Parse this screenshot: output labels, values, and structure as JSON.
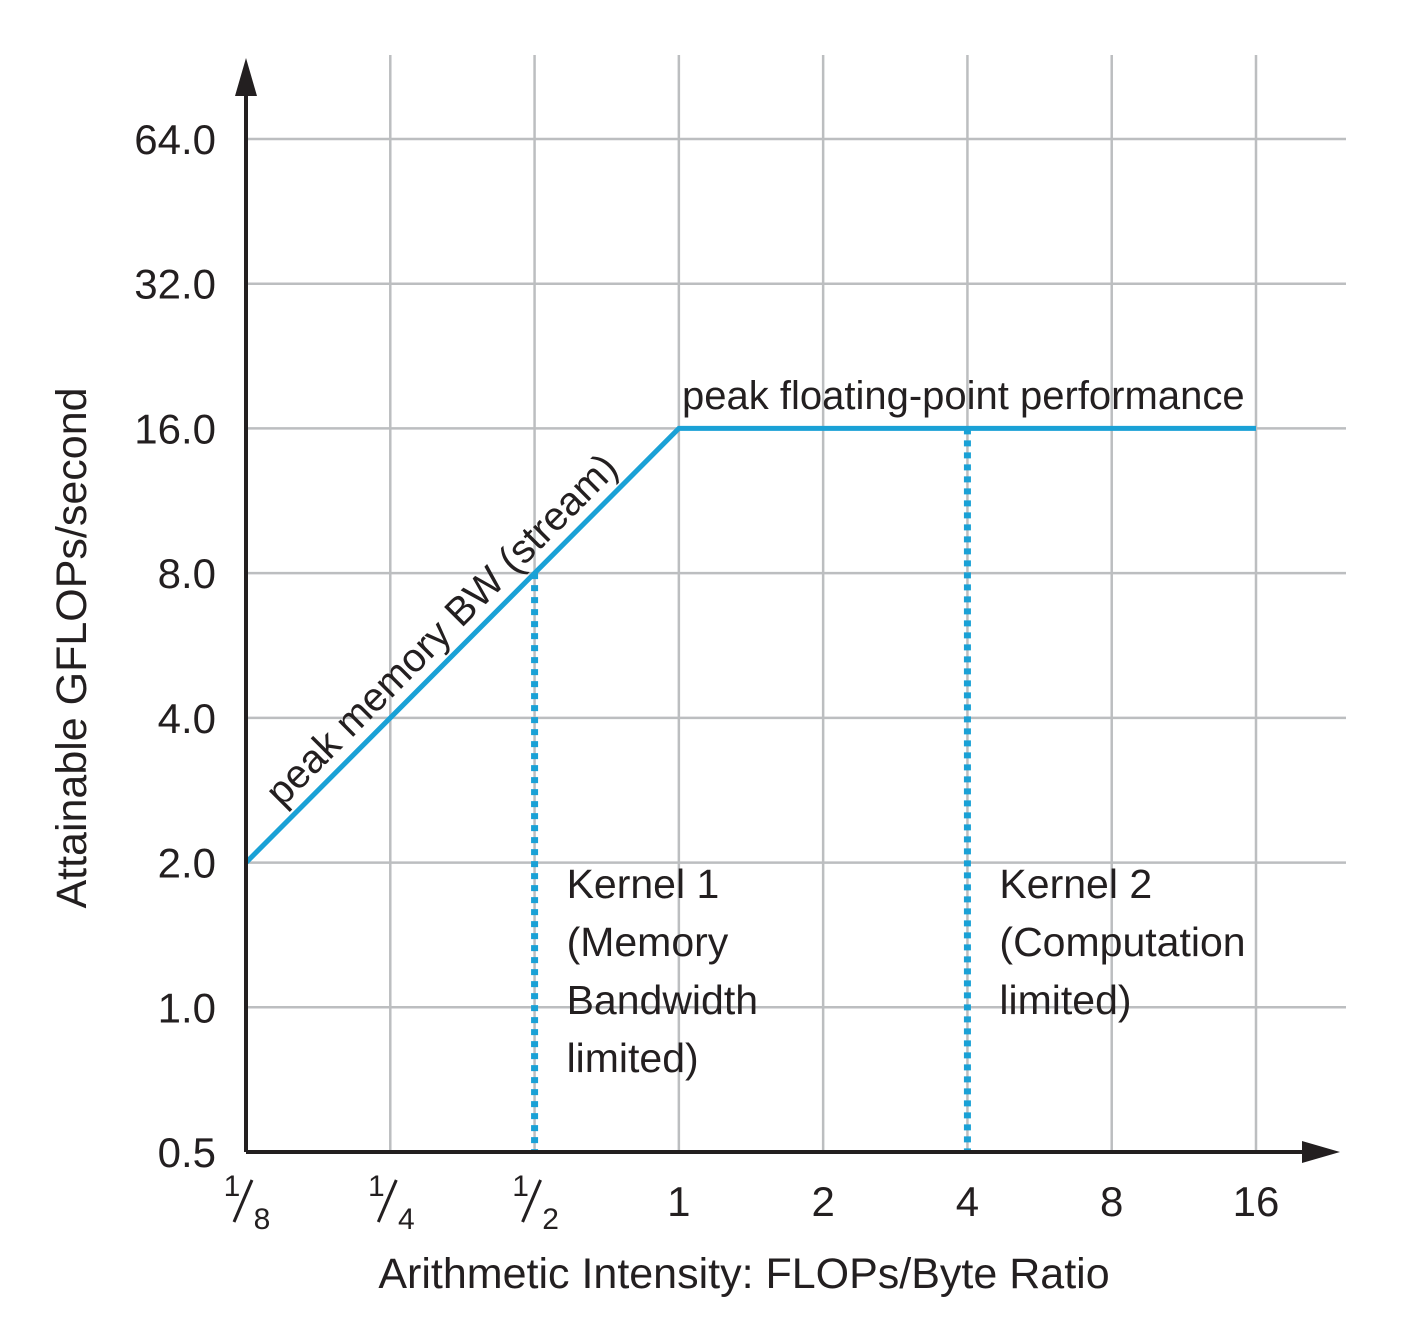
{
  "chart_data": {
    "type": "line",
    "xlabel": "Arithmetic Intensity: FLOPs/Byte Ratio",
    "ylabel": "Attainable GFLOPs/second",
    "x_scale": "log2",
    "y_scale": "log2",
    "xlim": [
      0.125,
      16
    ],
    "ylim": [
      0.5,
      64
    ],
    "x_ticks": [
      {
        "value": 0.125,
        "num": "1",
        "den": "8"
      },
      {
        "value": 0.25,
        "num": "1",
        "den": "4"
      },
      {
        "value": 0.5,
        "num": "1",
        "den": "2"
      },
      {
        "value": 1,
        "label": "1"
      },
      {
        "value": 2,
        "label": "2"
      },
      {
        "value": 4,
        "label": "4"
      },
      {
        "value": 8,
        "label": "8"
      },
      {
        "value": 16,
        "label": "16"
      }
    ],
    "y_ticks": [
      {
        "value": 0.5,
        "label": "0.5"
      },
      {
        "value": 1,
        "label": "1.0"
      },
      {
        "value": 2,
        "label": "2.0"
      },
      {
        "value": 4,
        "label": "4.0"
      },
      {
        "value": 8,
        "label": "8.0"
      },
      {
        "value": 16,
        "label": "16.0"
      },
      {
        "value": 32,
        "label": "32.0"
      },
      {
        "value": 64,
        "label": "64.0"
      }
    ],
    "grid": true,
    "series": [
      {
        "x": [
          0.125,
          1,
          16
        ],
        "y": [
          2,
          16,
          16
        ],
        "color": "#1aa1d6"
      }
    ],
    "kernels": [
      {
        "x": 0.5,
        "y_top": 8,
        "lines": [
          "Kernel 1",
          "(Memory",
          "Bandwidth",
          "limited)"
        ]
      },
      {
        "x": 4,
        "y_top": 16,
        "lines": [
          "Kernel 2",
          "(Computation",
          "limited)"
        ]
      }
    ],
    "annotations": {
      "roof_slope": "peak memory BW (stream)",
      "roof_flat": "peak floating-point performance"
    },
    "colors": {
      "roofline": "#1aa1d6",
      "kernel_line": "#1aa1d6",
      "grid": "#bcbec0",
      "axis": "#231f20"
    }
  }
}
